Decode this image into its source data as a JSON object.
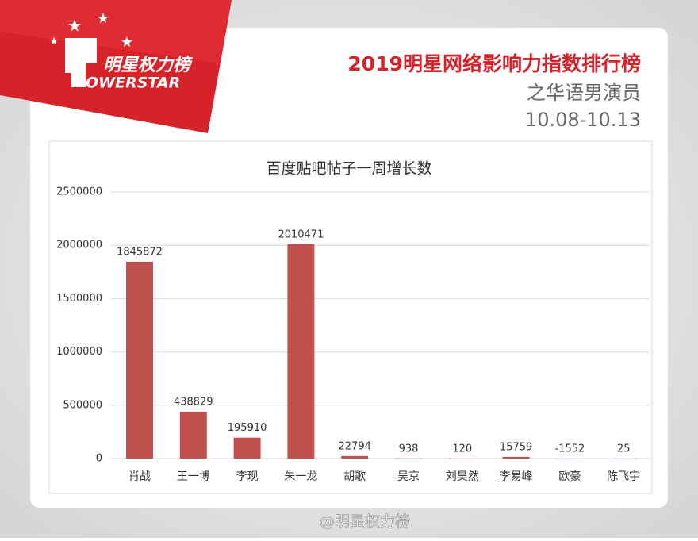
{
  "header": {
    "logo_cn": "明星权力榜",
    "logo_en": "OWERSTAR",
    "title": "2019明星网络影响力指数排行榜",
    "subtitle": "之华语男演员",
    "date": "10.08-10.13"
  },
  "watermark": "@明星权力榜",
  "chart_data": {
    "type": "bar",
    "title": "百度贴吧帖子一周增长数",
    "categories": [
      "肖战",
      "王一博",
      "李现",
      "朱一龙",
      "胡歌",
      "吴京",
      "刘昊然",
      "李易峰",
      "欧豪",
      "陈飞宇"
    ],
    "values": [
      1845872,
      438829,
      195910,
      2010471,
      22794,
      938,
      120,
      15759,
      -1552,
      25
    ],
    "color": "#c0504d",
    "ylim": [
      0,
      2500000
    ],
    "yticks": [
      0,
      500000,
      1000000,
      1500000,
      2000000,
      2500000
    ],
    "grid": true
  }
}
